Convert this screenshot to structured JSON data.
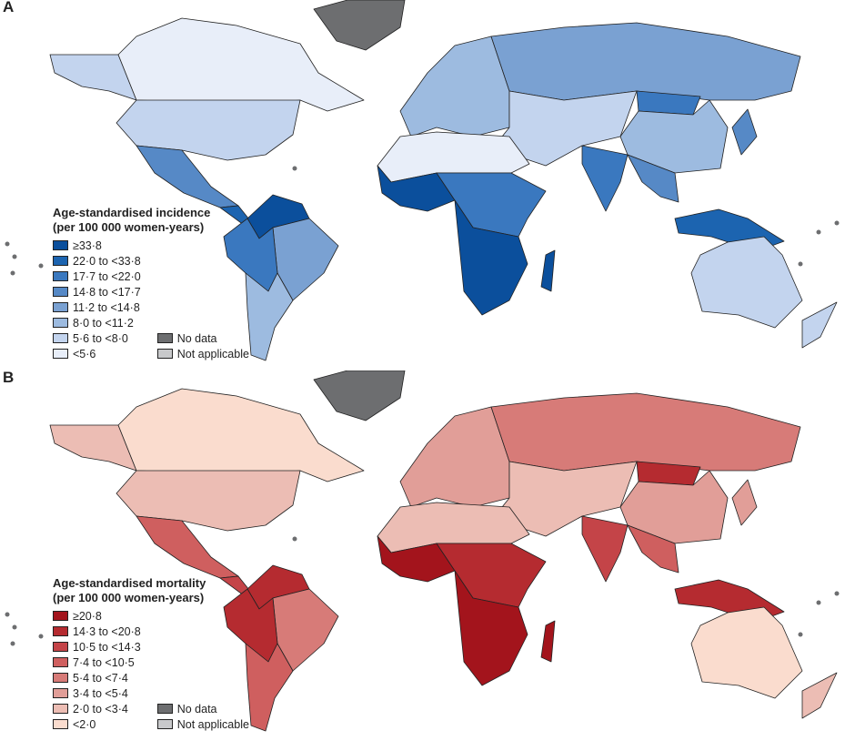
{
  "panels": [
    {
      "label": "A",
      "legend_title_1": "Age-standardised incidence",
      "legend_title_2": "(per 100 000 women-years)",
      "classes": [
        "≥33·8",
        "22·0 to <33·8",
        "17·7 to <22·0",
        "14·8 to <17·7",
        "11·2 to <14·8",
        "8·0 to <11·2",
        "5·6 to <8·0",
        "<5·6"
      ],
      "colors": [
        "#0b4f9c",
        "#1c64b0",
        "#3a78bf",
        "#5689c6",
        "#7aa1d2",
        "#9dbbe0",
        "#c3d4ee",
        "#e8eef9"
      ],
      "fills": {
        "canada": 7,
        "alaska": 6,
        "usa": 6,
        "mexico": 3,
        "central-america": 1,
        "south-america-north": 0,
        "brazil": 4,
        "andes": 2,
        "south-cone": 5,
        "europe": 5,
        "russia": 4,
        "central-asia": 6,
        "china": 5,
        "mongolia": 2,
        "india": 2,
        "southeast-asia": 3,
        "indonesia": 1,
        "north-africa": 7,
        "west-africa": 0,
        "east-central-africa": 2,
        "southern-africa": 0,
        "madagascar": 0,
        "australia": 6,
        "new-zealand": 6,
        "japan": 3
      }
    },
    {
      "label": "B",
      "legend_title_1": "Age-standardised mortality",
      "legend_title_2": "(per 100 000 women-years)",
      "classes": [
        "≥20·8",
        "14·3 to <20·8",
        "10·5 to <14·3",
        "7·4 to <10·5",
        "5·4 to <7·4",
        "3·4 to <5·4",
        "2·0 to <3·4",
        "<2·0"
      ],
      "colors": [
        "#a3141c",
        "#b52b30",
        "#c44448",
        "#cf5f5f",
        "#d77b78",
        "#e19e98",
        "#ecbdb4",
        "#fadcce"
      ],
      "fills": {
        "canada": 7,
        "alaska": 6,
        "usa": 6,
        "mexico": 3,
        "central-america": 2,
        "south-america-north": 1,
        "brazil": 4,
        "andes": 1,
        "south-cone": 3,
        "europe": 5,
        "russia": 4,
        "central-asia": 6,
        "china": 5,
        "mongolia": 1,
        "india": 2,
        "southeast-asia": 3,
        "indonesia": 1,
        "north-africa": 6,
        "west-africa": 0,
        "east-central-africa": 1,
        "southern-africa": 0,
        "madagascar": 0,
        "australia": 7,
        "new-zealand": 6,
        "japan": 5
      }
    }
  ],
  "no_data_label": "No data",
  "not_applicable_label": "Not applicable",
  "no_data_color": "#6d6e70",
  "not_applicable_color": "#c8c9cb"
}
